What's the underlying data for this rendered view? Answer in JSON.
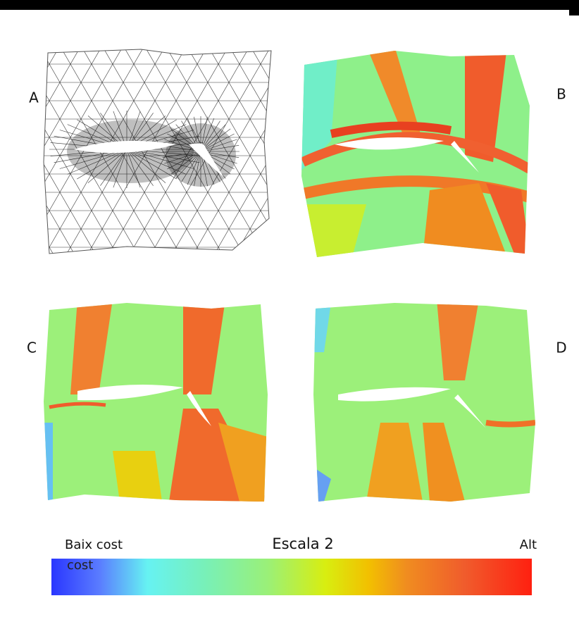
{
  "panels": [
    {
      "label": "A"
    },
    {
      "label": "B"
    },
    {
      "label": "C"
    },
    {
      "label": "D"
    }
  ],
  "colorbar": {
    "title": "Escala 2",
    "low_label": "Baix cost",
    "low_label_second_line": "cost",
    "high_label": "Alt"
  }
}
